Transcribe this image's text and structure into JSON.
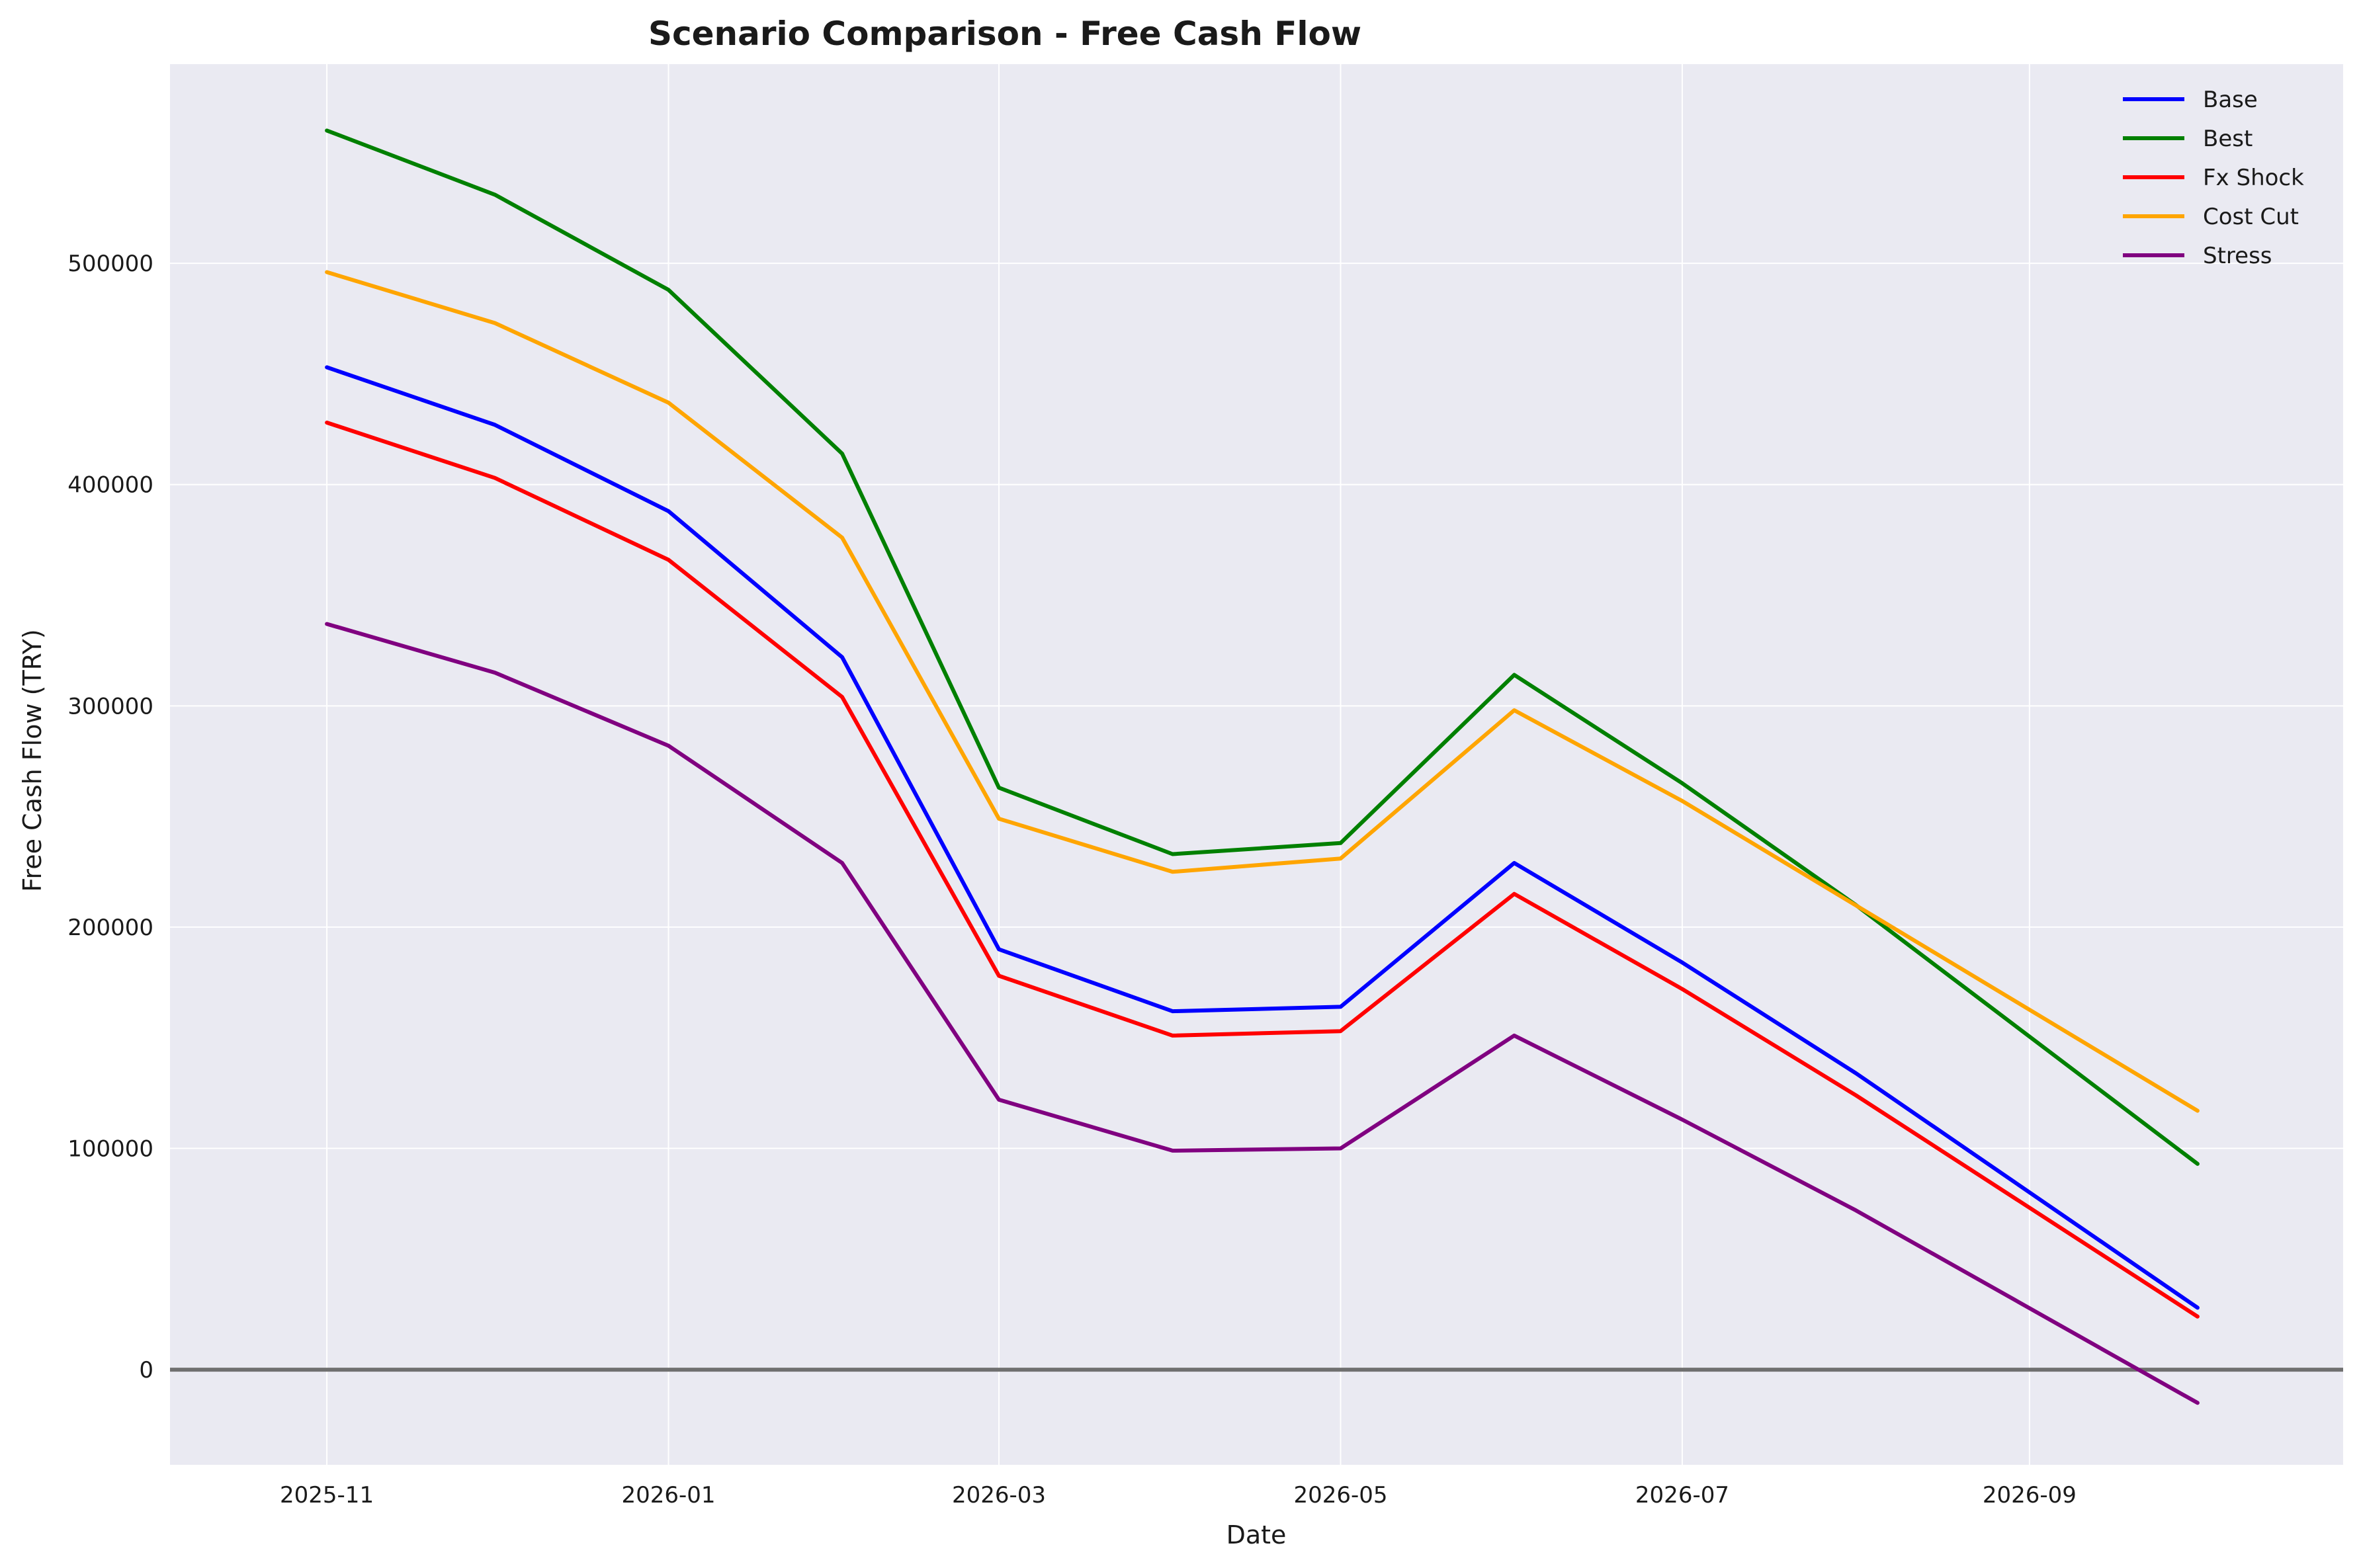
{
  "chart_data": {
    "type": "line",
    "title": "Scenario Comparison - Free Cash Flow",
    "xlabel": "Date",
    "ylabel": "Free Cash Flow (TRY)",
    "x": [
      "2025-11",
      "2025-12",
      "2026-01",
      "2026-02",
      "2026-03",
      "2026-04",
      "2026-05",
      "2026-06",
      "2026-07",
      "2026-08",
      "2026-09",
      "2026-10"
    ],
    "x_ticks": [
      "2025-11",
      "2026-01",
      "2026-03",
      "2026-05",
      "2026-07",
      "2026-09"
    ],
    "y_ticks": [
      0,
      100000,
      200000,
      300000,
      400000,
      500000
    ],
    "ylim": [
      -43000,
      590000
    ],
    "xlim": [
      "2025-10-04",
      "2026-10-27"
    ],
    "grid": true,
    "legend_position": "top-right",
    "reference_line": {
      "y": 0,
      "color": "#707070"
    },
    "series": [
      {
        "name": "Base",
        "color": "#0000ff",
        "values": [
          453000,
          427000,
          388000,
          322000,
          190000,
          162000,
          164000,
          229000,
          184000,
          134000,
          null,
          28000
        ]
      },
      {
        "name": "Best",
        "color": "#008000",
        "values": [
          560000,
          531000,
          488000,
          414000,
          263000,
          233000,
          238000,
          314000,
          265000,
          210000,
          null,
          93000
        ]
      },
      {
        "name": "Fx Shock",
        "color": "#ff0000",
        "values": [
          428000,
          403000,
          366000,
          304000,
          178000,
          151000,
          153000,
          215000,
          172000,
          124000,
          null,
          24000
        ]
      },
      {
        "name": "Cost Cut",
        "color": "#ffa500",
        "values": [
          496000,
          473000,
          437000,
          376000,
          249000,
          225000,
          231000,
          298000,
          257000,
          null,
          null,
          117000
        ]
      },
      {
        "name": "Stress",
        "color": "#800080",
        "values": [
          337000,
          315000,
          282000,
          229000,
          122000,
          99000,
          100000,
          151000,
          113000,
          72000,
          null,
          -15000
        ]
      }
    ]
  }
}
